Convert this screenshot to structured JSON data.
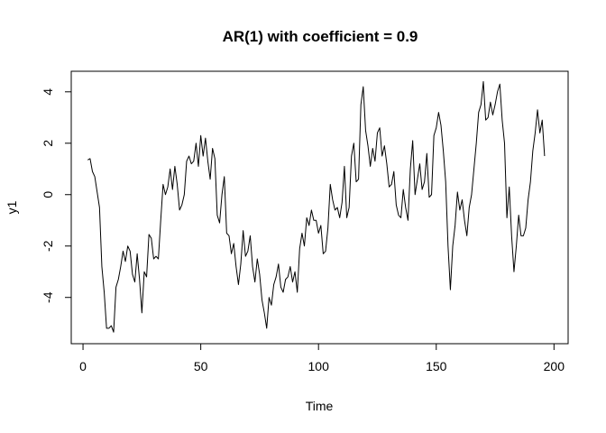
{
  "chart_data": {
    "type": "line",
    "title": "AR(1) with coefficient = 0.9",
    "xlabel": "Time",
    "ylabel": "y1",
    "xlim": [
      -5,
      206
    ],
    "ylim": [
      -5.8,
      4.8
    ],
    "xticks": [
      0,
      50,
      100,
      150,
      200
    ],
    "yticks": [
      -4,
      -2,
      0,
      2,
      4
    ],
    "grid": false,
    "series": [
      {
        "color": "#000000",
        "x_start": 2,
        "values": [
          1.35,
          1.4,
          0.9,
          0.7,
          0.1,
          -0.5,
          -2.8,
          -3.8,
          -5.2,
          -5.2,
          -5.1,
          -5.35,
          -3.6,
          -3.3,
          -2.8,
          -2.2,
          -2.6,
          -2.0,
          -2.2,
          -3.1,
          -3.4,
          -2.3,
          -3.3,
          -4.6,
          -3.0,
          -3.2,
          -1.55,
          -1.7,
          -2.5,
          -2.4,
          -2.5,
          -1.0,
          0.4,
          0.0,
          0.3,
          1.0,
          0.2,
          1.1,
          0.4,
          -0.6,
          -0.4,
          0.0,
          1.3,
          1.5,
          1.2,
          1.3,
          2.0,
          1.1,
          2.3,
          1.5,
          2.2,
          1.3,
          0.6,
          1.8,
          1.4,
          -0.8,
          -1.1,
          0.0,
          0.7,
          -1.5,
          -1.6,
          -2.3,
          -1.9,
          -2.8,
          -3.5,
          -2.7,
          -1.4,
          -2.4,
          -2.2,
          -1.6,
          -2.8,
          -3.4,
          -2.5,
          -3.1,
          -4.1,
          -4.6,
          -5.2,
          -4.0,
          -4.3,
          -3.5,
          -3.2,
          -2.7,
          -3.6,
          -3.8,
          -3.3,
          -3.2,
          -2.8,
          -3.4,
          -3.0,
          -3.8,
          -2.1,
          -1.5,
          -2.0,
          -0.9,
          -1.2,
          -0.6,
          -1.0,
          -1.0,
          -1.5,
          -1.2,
          -2.3,
          -2.2,
          -1.3,
          0.4,
          -0.2,
          -0.6,
          -0.5,
          -0.9,
          -0.3,
          1.1,
          -0.9,
          -0.5,
          1.5,
          2.0,
          0.5,
          0.6,
          3.5,
          4.2,
          2.5,
          1.9,
          1.1,
          1.8,
          1.3,
          2.4,
          2.6,
          1.5,
          1.9,
          1.2,
          0.3,
          0.4,
          0.9,
          -0.4,
          -0.8,
          -0.9,
          0.2,
          -0.5,
          -1.0,
          1.0,
          2.1,
          0.0,
          0.6,
          1.2,
          0.2,
          0.5,
          1.6,
          -0.1,
          0.0,
          2.3,
          2.6,
          3.2,
          2.7,
          1.7,
          0.5,
          -2.0,
          -3.7,
          -2.0,
          -1.2,
          0.1,
          -0.6,
          -0.2,
          -1.0,
          -1.6,
          -0.5,
          0.0,
          1.0,
          2.0,
          3.2,
          3.5,
          4.4,
          2.9,
          3.0,
          3.6,
          3.1,
          3.5,
          4.0,
          4.3,
          2.9,
          2.0,
          -0.9,
          0.3,
          -1.6,
          -3.0,
          -2.0,
          -0.8,
          -1.6,
          -1.6,
          -1.3,
          -0.2,
          0.5,
          1.7,
          2.4,
          3.3,
          2.4,
          2.9,
          1.5
        ]
      }
    ]
  }
}
